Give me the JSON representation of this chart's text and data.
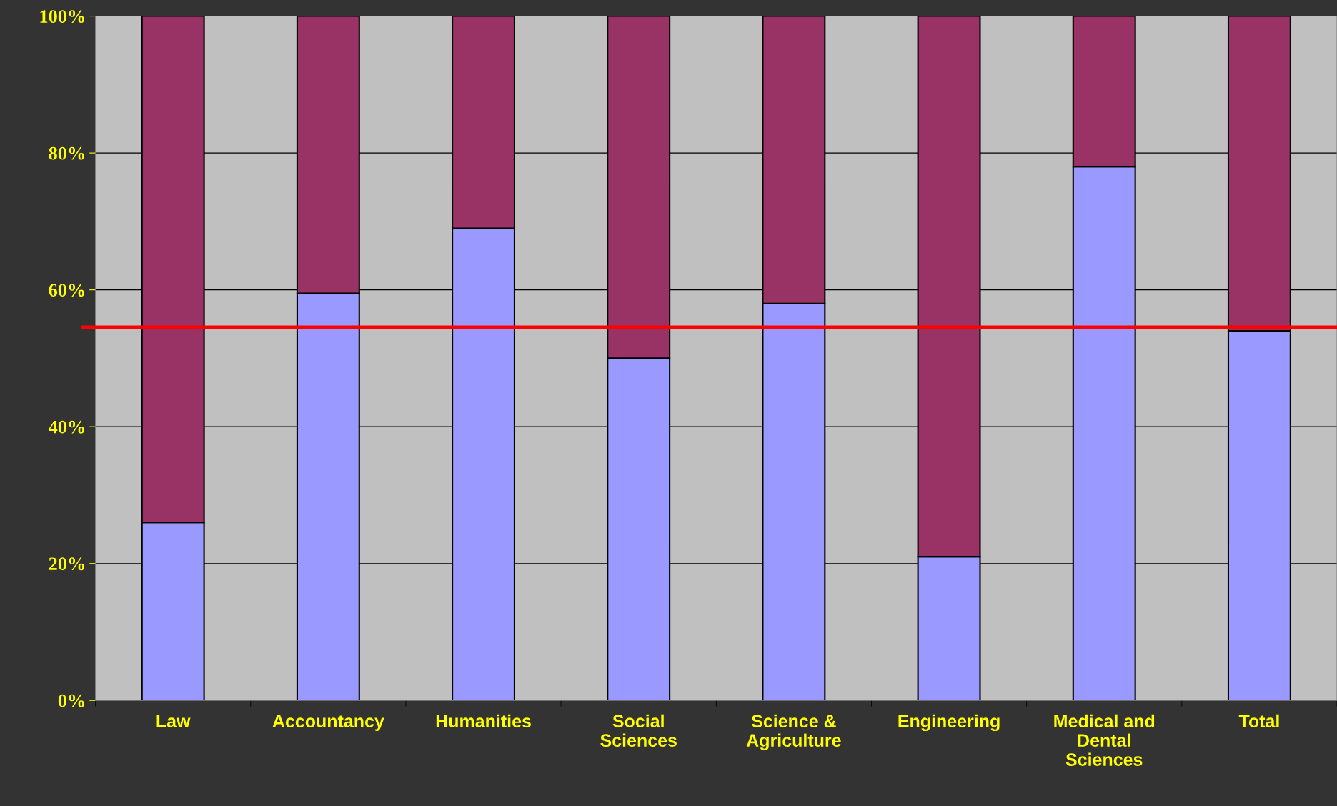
{
  "chart_data": {
    "type": "bar",
    "stacked": true,
    "categories": [
      "Law",
      "Accountancy",
      "Humanities",
      "Social\nSciences",
      "Science &\nAgriculture",
      "Engineering",
      "Medical and\nDental\nSciences",
      "Total"
    ],
    "series": [
      {
        "color": "#9999ff",
        "values": [
          26,
          59.5,
          69,
          50,
          58,
          21,
          78,
          54
        ]
      },
      {
        "color": "#993366",
        "values": [
          74,
          40.5,
          31,
          50,
          42,
          79,
          22,
          46
        ]
      }
    ],
    "ylim": [
      0,
      100
    ],
    "yticks": [
      {
        "value": 0,
        "label": "0%"
      },
      {
        "value": 20,
        "label": "20%"
      },
      {
        "value": 40,
        "label": "40%"
      },
      {
        "value": 60,
        "label": "60%"
      },
      {
        "value": 80,
        "label": "80%"
      },
      {
        "value": 100,
        "label": "100%"
      }
    ],
    "grid": "y",
    "legend": false,
    "ref_lines": [
      {
        "axis": "y",
        "value": 54.5,
        "color": "#ff0000",
        "line_style": "solid"
      }
    ]
  }
}
